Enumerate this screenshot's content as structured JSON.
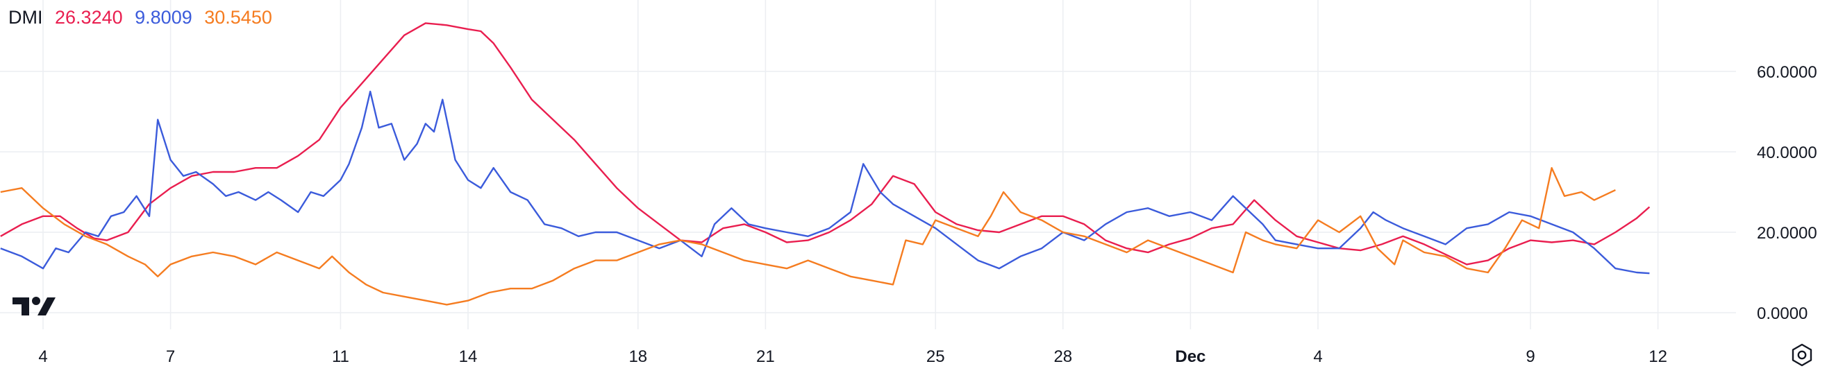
{
  "legend": {
    "indicator": "DMI",
    "adx": "26.3240",
    "plus_di": "9.8009",
    "minus_di": "30.5450"
  },
  "colors": {
    "adx": "#e91e4f",
    "plus_di": "#3b5bdb",
    "minus_di": "#f57c20",
    "grid": "#eceef2",
    "text": "#131722"
  },
  "icons": {
    "logo": "tradingview-logo-icon",
    "settings": "settings-gear-icon"
  },
  "chart_data": {
    "type": "line",
    "ylim": [
      0,
      80
    ],
    "y_ticks": [
      "0.0000",
      "20.0000",
      "40.0000",
      "60.0000"
    ],
    "x_ticks": [
      {
        "label": "4",
        "day": 0,
        "bold": false
      },
      {
        "label": "7",
        "day": 3,
        "bold": false
      },
      {
        "label": "11",
        "day": 7,
        "bold": false
      },
      {
        "label": "14",
        "day": 10,
        "bold": false
      },
      {
        "label": "18",
        "day": 14,
        "bold": false
      },
      {
        "label": "21",
        "day": 17,
        "bold": false
      },
      {
        "label": "25",
        "day": 21,
        "bold": false
      },
      {
        "label": "28",
        "day": 24,
        "bold": false
      },
      {
        "label": "Dec",
        "day": 27,
        "bold": true
      },
      {
        "label": "4",
        "day": 30,
        "bold": false
      },
      {
        "label": "9",
        "day": 35,
        "bold": false
      },
      {
        "label": "12",
        "day": 38,
        "bold": false
      }
    ],
    "grid": true,
    "series": [
      {
        "key": "adx",
        "points": [
          [
            -1,
            19
          ],
          [
            -0.5,
            22
          ],
          [
            0,
            24
          ],
          [
            0.4,
            24
          ],
          [
            0.8,
            21
          ],
          [
            1.2,
            18.5
          ],
          [
            1.5,
            18
          ],
          [
            2,
            20
          ],
          [
            2.5,
            27
          ],
          [
            3,
            31
          ],
          [
            3.5,
            34
          ],
          [
            4,
            35
          ],
          [
            4.5,
            35
          ],
          [
            5,
            36
          ],
          [
            5.5,
            36
          ],
          [
            6,
            39
          ],
          [
            6.5,
            43
          ],
          [
            7,
            51
          ],
          [
            7.5,
            57
          ],
          [
            8,
            63
          ],
          [
            8.5,
            69
          ],
          [
            9,
            72
          ],
          [
            9.5,
            71.5
          ],
          [
            10,
            70.5
          ],
          [
            10.3,
            70
          ],
          [
            10.6,
            67
          ],
          [
            11,
            61
          ],
          [
            11.5,
            53
          ],
          [
            12,
            48
          ],
          [
            12.5,
            43
          ],
          [
            13,
            37
          ],
          [
            13.5,
            31
          ],
          [
            14,
            26
          ],
          [
            14.5,
            22
          ],
          [
            15,
            18
          ],
          [
            15.5,
            17.5
          ],
          [
            16,
            21
          ],
          [
            16.5,
            22
          ],
          [
            17,
            20
          ],
          [
            17.5,
            17.5
          ],
          [
            18,
            18
          ],
          [
            18.5,
            20
          ],
          [
            19,
            23
          ],
          [
            19.5,
            27
          ],
          [
            20,
            34
          ],
          [
            20.5,
            32
          ],
          [
            21,
            25
          ],
          [
            21.5,
            22
          ],
          [
            22,
            20.5
          ],
          [
            22.5,
            20
          ],
          [
            23,
            22
          ],
          [
            23.5,
            24
          ],
          [
            24,
            24
          ],
          [
            24.5,
            22
          ],
          [
            25,
            18
          ],
          [
            25.5,
            16
          ],
          [
            26,
            15
          ],
          [
            26.5,
            17
          ],
          [
            27,
            18.5
          ],
          [
            27.5,
            21
          ],
          [
            28,
            22
          ],
          [
            28.5,
            28
          ],
          [
            29,
            23
          ],
          [
            29.5,
            19
          ],
          [
            30,
            17.5
          ],
          [
            30.5,
            16
          ],
          [
            31,
            15.5
          ],
          [
            31.5,
            17
          ],
          [
            32,
            19
          ],
          [
            32.5,
            17
          ],
          [
            33,
            14.5
          ],
          [
            33.5,
            12
          ],
          [
            34,
            13
          ],
          [
            34.5,
            16
          ],
          [
            35,
            18
          ],
          [
            35.5,
            17.5
          ],
          [
            36,
            18
          ],
          [
            36.5,
            17
          ],
          [
            37,
            20
          ],
          [
            37.5,
            23.5
          ],
          [
            37.8,
            26.3
          ]
        ]
      },
      {
        "key": "plus_di",
        "points": [
          [
            -1,
            16
          ],
          [
            -0.5,
            14
          ],
          [
            0,
            11
          ],
          [
            0.3,
            16
          ],
          [
            0.6,
            15
          ],
          [
            1,
            20
          ],
          [
            1.3,
            19
          ],
          [
            1.6,
            24
          ],
          [
            1.9,
            25
          ],
          [
            2.2,
            29
          ],
          [
            2.5,
            24
          ],
          [
            2.7,
            48
          ],
          [
            3,
            38
          ],
          [
            3.3,
            34
          ],
          [
            3.6,
            35
          ],
          [
            4,
            32
          ],
          [
            4.3,
            29
          ],
          [
            4.6,
            30
          ],
          [
            5,
            28
          ],
          [
            5.3,
            30
          ],
          [
            5.6,
            28
          ],
          [
            6,
            25
          ],
          [
            6.3,
            30
          ],
          [
            6.6,
            29
          ],
          [
            7,
            33
          ],
          [
            7.2,
            37
          ],
          [
            7.5,
            46
          ],
          [
            7.7,
            55
          ],
          [
            7.9,
            46
          ],
          [
            8.2,
            47
          ],
          [
            8.5,
            38
          ],
          [
            8.8,
            42
          ],
          [
            9,
            47
          ],
          [
            9.2,
            45
          ],
          [
            9.4,
            53
          ],
          [
            9.7,
            38
          ],
          [
            10,
            33
          ],
          [
            10.3,
            31
          ],
          [
            10.6,
            36
          ],
          [
            11,
            30
          ],
          [
            11.4,
            28
          ],
          [
            11.8,
            22
          ],
          [
            12.2,
            21
          ],
          [
            12.6,
            19
          ],
          [
            13,
            20
          ],
          [
            13.5,
            20
          ],
          [
            14,
            18
          ],
          [
            14.5,
            16
          ],
          [
            15,
            18
          ],
          [
            15.5,
            14
          ],
          [
            15.8,
            22
          ],
          [
            16.2,
            26
          ],
          [
            16.6,
            22
          ],
          [
            17,
            21
          ],
          [
            17.5,
            20
          ],
          [
            18,
            19
          ],
          [
            18.5,
            21
          ],
          [
            19,
            25
          ],
          [
            19.3,
            37
          ],
          [
            19.7,
            30
          ],
          [
            20,
            27
          ],
          [
            20.5,
            24
          ],
          [
            21,
            21
          ],
          [
            21.5,
            17
          ],
          [
            22,
            13
          ],
          [
            22.5,
            11
          ],
          [
            23,
            14
          ],
          [
            23.5,
            16
          ],
          [
            24,
            20
          ],
          [
            24.5,
            18
          ],
          [
            25,
            22
          ],
          [
            25.5,
            25
          ],
          [
            26,
            26
          ],
          [
            26.5,
            24
          ],
          [
            27,
            25
          ],
          [
            27.5,
            23
          ],
          [
            28,
            29
          ],
          [
            28.3,
            26
          ],
          [
            28.7,
            22
          ],
          [
            29,
            18
          ],
          [
            29.5,
            17
          ],
          [
            30,
            16
          ],
          [
            30.5,
            16
          ],
          [
            31,
            21
          ],
          [
            31.3,
            25
          ],
          [
            31.6,
            23
          ],
          [
            32,
            21
          ],
          [
            32.5,
            19
          ],
          [
            33,
            17
          ],
          [
            33.5,
            21
          ],
          [
            34,
            22
          ],
          [
            34.5,
            25
          ],
          [
            35,
            24
          ],
          [
            35.5,
            22
          ],
          [
            36,
            20
          ],
          [
            36.5,
            16
          ],
          [
            37,
            11
          ],
          [
            37.5,
            10
          ],
          [
            37.8,
            9.8
          ]
        ]
      },
      {
        "key": "minus_di",
        "points": [
          [
            -1,
            30
          ],
          [
            -0.5,
            31
          ],
          [
            0,
            26
          ],
          [
            0.5,
            22
          ],
          [
            1,
            19
          ],
          [
            1.5,
            17
          ],
          [
            2,
            14
          ],
          [
            2.4,
            12
          ],
          [
            2.7,
            9
          ],
          [
            3,
            12
          ],
          [
            3.5,
            14
          ],
          [
            4,
            15
          ],
          [
            4.5,
            14
          ],
          [
            5,
            12
          ],
          [
            5.5,
            15
          ],
          [
            6,
            13
          ],
          [
            6.5,
            11
          ],
          [
            6.8,
            14
          ],
          [
            7.2,
            10
          ],
          [
            7.6,
            7
          ],
          [
            8,
            5
          ],
          [
            8.5,
            4
          ],
          [
            9,
            3
          ],
          [
            9.5,
            2
          ],
          [
            10,
            3
          ],
          [
            10.5,
            5
          ],
          [
            11,
            6
          ],
          [
            11.5,
            6
          ],
          [
            12,
            8
          ],
          [
            12.5,
            11
          ],
          [
            13,
            13
          ],
          [
            13.5,
            13
          ],
          [
            14,
            15
          ],
          [
            14.5,
            17
          ],
          [
            15,
            18
          ],
          [
            15.5,
            17
          ],
          [
            16,
            15
          ],
          [
            16.5,
            13
          ],
          [
            17,
            12
          ],
          [
            17.5,
            11
          ],
          [
            18,
            13
          ],
          [
            18.5,
            11
          ],
          [
            19,
            9
          ],
          [
            19.5,
            8
          ],
          [
            20,
            7
          ],
          [
            20.3,
            18
          ],
          [
            20.7,
            17
          ],
          [
            21,
            23
          ],
          [
            21.5,
            21
          ],
          [
            22,
            19
          ],
          [
            22.3,
            24
          ],
          [
            22.6,
            30
          ],
          [
            23,
            25
          ],
          [
            23.5,
            23
          ],
          [
            24,
            20
          ],
          [
            24.5,
            19
          ],
          [
            25,
            17
          ],
          [
            25.5,
            15
          ],
          [
            26,
            18
          ],
          [
            26.5,
            16
          ],
          [
            27,
            14
          ],
          [
            27.5,
            12
          ],
          [
            28,
            10
          ],
          [
            28.3,
            20
          ],
          [
            28.7,
            18
          ],
          [
            29,
            17
          ],
          [
            29.5,
            16
          ],
          [
            30,
            23
          ],
          [
            30.5,
            20
          ],
          [
            31,
            24
          ],
          [
            31.4,
            16
          ],
          [
            31.8,
            12
          ],
          [
            32,
            18
          ],
          [
            32.5,
            15
          ],
          [
            33,
            14
          ],
          [
            33.5,
            11
          ],
          [
            34,
            10
          ],
          [
            34.4,
            16
          ],
          [
            34.8,
            23
          ],
          [
            35.2,
            21
          ],
          [
            35.5,
            36
          ],
          [
            35.8,
            29
          ],
          [
            36.2,
            30
          ],
          [
            36.5,
            28
          ],
          [
            37,
            30.5
          ]
        ]
      }
    ]
  }
}
